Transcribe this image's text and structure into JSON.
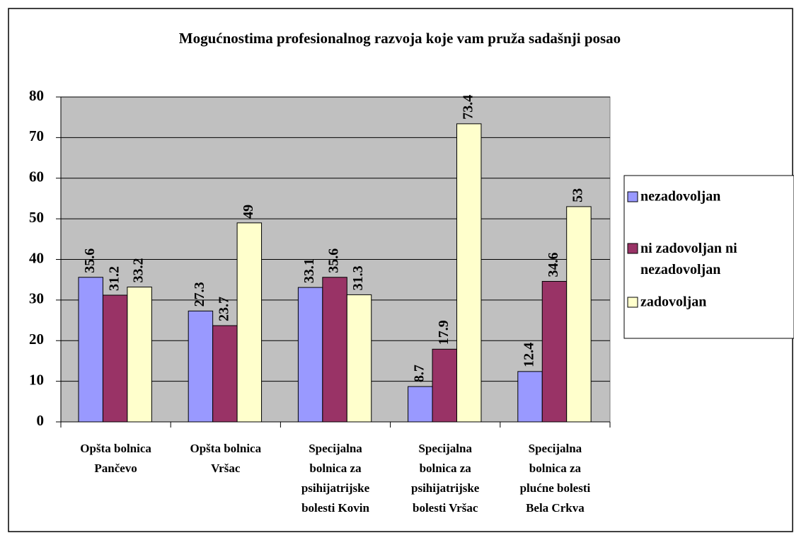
{
  "chart_data": {
    "type": "bar",
    "title": "Mogućnostima profesionalnog razvoja koje vam pruža sadašnji posao",
    "categories": [
      "Opšta bolnica\nPančevo",
      "Opšta bolnica\nVršac",
      "Specijalna\nbolnica za\npsihijatrijske\nbolesti Kovin",
      "Specijalna\nbolnica za\npsihijatrijske\nbolesti Vršac",
      "Specijalna\nbolnica za\nplućne bolesti\nBela Crkva"
    ],
    "series": [
      {
        "name": "nezadovoljan",
        "color": "#9999ff",
        "values": [
          35.6,
          27.3,
          33.1,
          8.7,
          12.4
        ]
      },
      {
        "name": "ni zadovoljan ni\nnezadovoljan",
        "color": "#993366",
        "values": [
          31.2,
          23.7,
          35.6,
          17.9,
          34.6
        ]
      },
      {
        "name": "zadovoljan",
        "color": "#ffffcc",
        "values": [
          33.2,
          49,
          31.3,
          73.4,
          53
        ]
      }
    ],
    "ylim": [
      0,
      80
    ],
    "yticks": [
      0,
      10,
      20,
      30,
      40,
      50,
      60,
      70,
      80
    ],
    "grid": true,
    "legend": "right"
  }
}
